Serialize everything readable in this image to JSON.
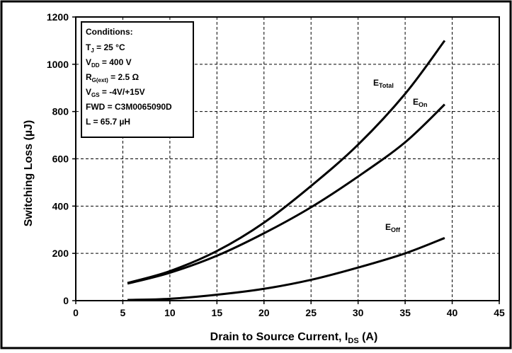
{
  "chart_data": {
    "type": "line",
    "xlabel": {
      "main": "Drain to Source Current, I",
      "sub": "DS",
      "unit": " (A)"
    },
    "ylabel": "Switching Loss (µJ)",
    "xlim": [
      0,
      45
    ],
    "ylim": [
      0,
      1200
    ],
    "xticks": [
      0,
      5,
      10,
      15,
      20,
      25,
      30,
      35,
      40,
      45
    ],
    "yticks": [
      0,
      200,
      400,
      600,
      800,
      1000,
      1200
    ],
    "grid": true,
    "series": [
      {
        "name": "E_Total",
        "label_main": "E",
        "label_sub": "Total",
        "x": [
          5.5,
          10,
          15,
          20,
          25,
          30,
          35,
          39.2
        ],
        "y": [
          75,
          125,
          210,
          330,
          485,
          660,
          875,
          1100
        ]
      },
      {
        "name": "E_On",
        "label_main": "E",
        "label_sub": "On",
        "x": [
          5.5,
          10,
          15,
          20,
          25,
          30,
          35,
          39.2
        ],
        "y": [
          72,
          118,
          190,
          285,
          395,
          525,
          670,
          830
        ]
      },
      {
        "name": "E_Off",
        "label_main": "E",
        "label_sub": "Off",
        "x": [
          5.5,
          10,
          15,
          20,
          25,
          30,
          35,
          39.2
        ],
        "y": [
          3,
          8,
          25,
          50,
          88,
          140,
          200,
          265
        ]
      }
    ],
    "conditions": {
      "title": "Conditions:",
      "lines": [
        {
          "main": "T",
          "sub": "J",
          "rest": " = 25 °C"
        },
        {
          "main": "V",
          "sub": "DD",
          "rest": " = 400 V"
        },
        {
          "main": "R",
          "sub": "G(ext)",
          "rest": " = 2.5 Ω"
        },
        {
          "main": "V",
          "sub": "GS",
          "rest": " = -4V/+15V"
        },
        {
          "main": "FWD = C3M0065090D",
          "sub": "",
          "rest": ""
        },
        {
          "main": "L = 65.7 µH",
          "sub": "",
          "rest": ""
        }
      ]
    }
  }
}
